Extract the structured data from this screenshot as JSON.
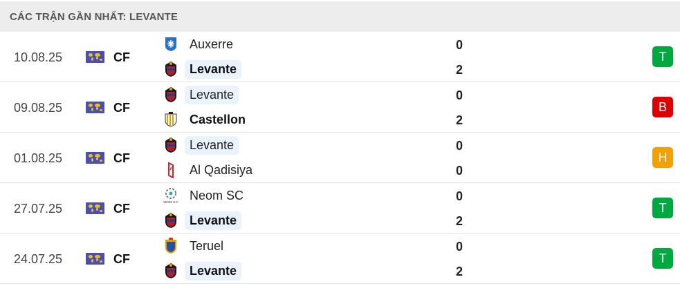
{
  "header": {
    "title": "CÁC TRẬN GẦN NHẤT: LEVANTE"
  },
  "colors": {
    "T": "#00a940",
    "B": "#dd0000",
    "H": "#f2a100",
    "highlight": "#eaf3fd"
  },
  "matches": [
    {
      "date": "10.08.25",
      "competition": "CF",
      "flag_icon": "world-map-flag",
      "home": {
        "name": "Auxerre",
        "logo": "auxerre-crest",
        "score": "0",
        "bold": false,
        "highlight": false
      },
      "away": {
        "name": "Levante",
        "logo": "levante-crest",
        "score": "2",
        "bold": true,
        "highlight": true
      },
      "result": "T"
    },
    {
      "date": "09.08.25",
      "competition": "CF",
      "flag_icon": "world-map-flag",
      "home": {
        "name": "Levante",
        "logo": "levante-crest",
        "score": "0",
        "bold": false,
        "highlight": true
      },
      "away": {
        "name": "Castellon",
        "logo": "castellon-crest",
        "score": "2",
        "bold": true,
        "highlight": false
      },
      "result": "B"
    },
    {
      "date": "01.08.25",
      "competition": "CF",
      "flag_icon": "world-map-flag",
      "home": {
        "name": "Levante",
        "logo": "levante-crest",
        "score": "0",
        "bold": false,
        "highlight": true
      },
      "away": {
        "name": "Al Qadisiya",
        "logo": "al-qadisiya-crest",
        "score": "0",
        "bold": false,
        "highlight": false
      },
      "result": "H"
    },
    {
      "date": "27.07.25",
      "competition": "CF",
      "flag_icon": "world-map-flag",
      "home": {
        "name": "Neom SC",
        "logo": "neom-sc-crest",
        "score": "0",
        "bold": false,
        "highlight": false
      },
      "away": {
        "name": "Levante",
        "logo": "levante-crest",
        "score": "2",
        "bold": true,
        "highlight": true
      },
      "result": "T"
    },
    {
      "date": "24.07.25",
      "competition": "CF",
      "flag_icon": "world-map-flag",
      "home": {
        "name": "Teruel",
        "logo": "teruel-crest",
        "score": "0",
        "bold": false,
        "highlight": false
      },
      "away": {
        "name": "Levante",
        "logo": "levante-crest",
        "score": "2",
        "bold": true,
        "highlight": true
      },
      "result": "T"
    }
  ]
}
